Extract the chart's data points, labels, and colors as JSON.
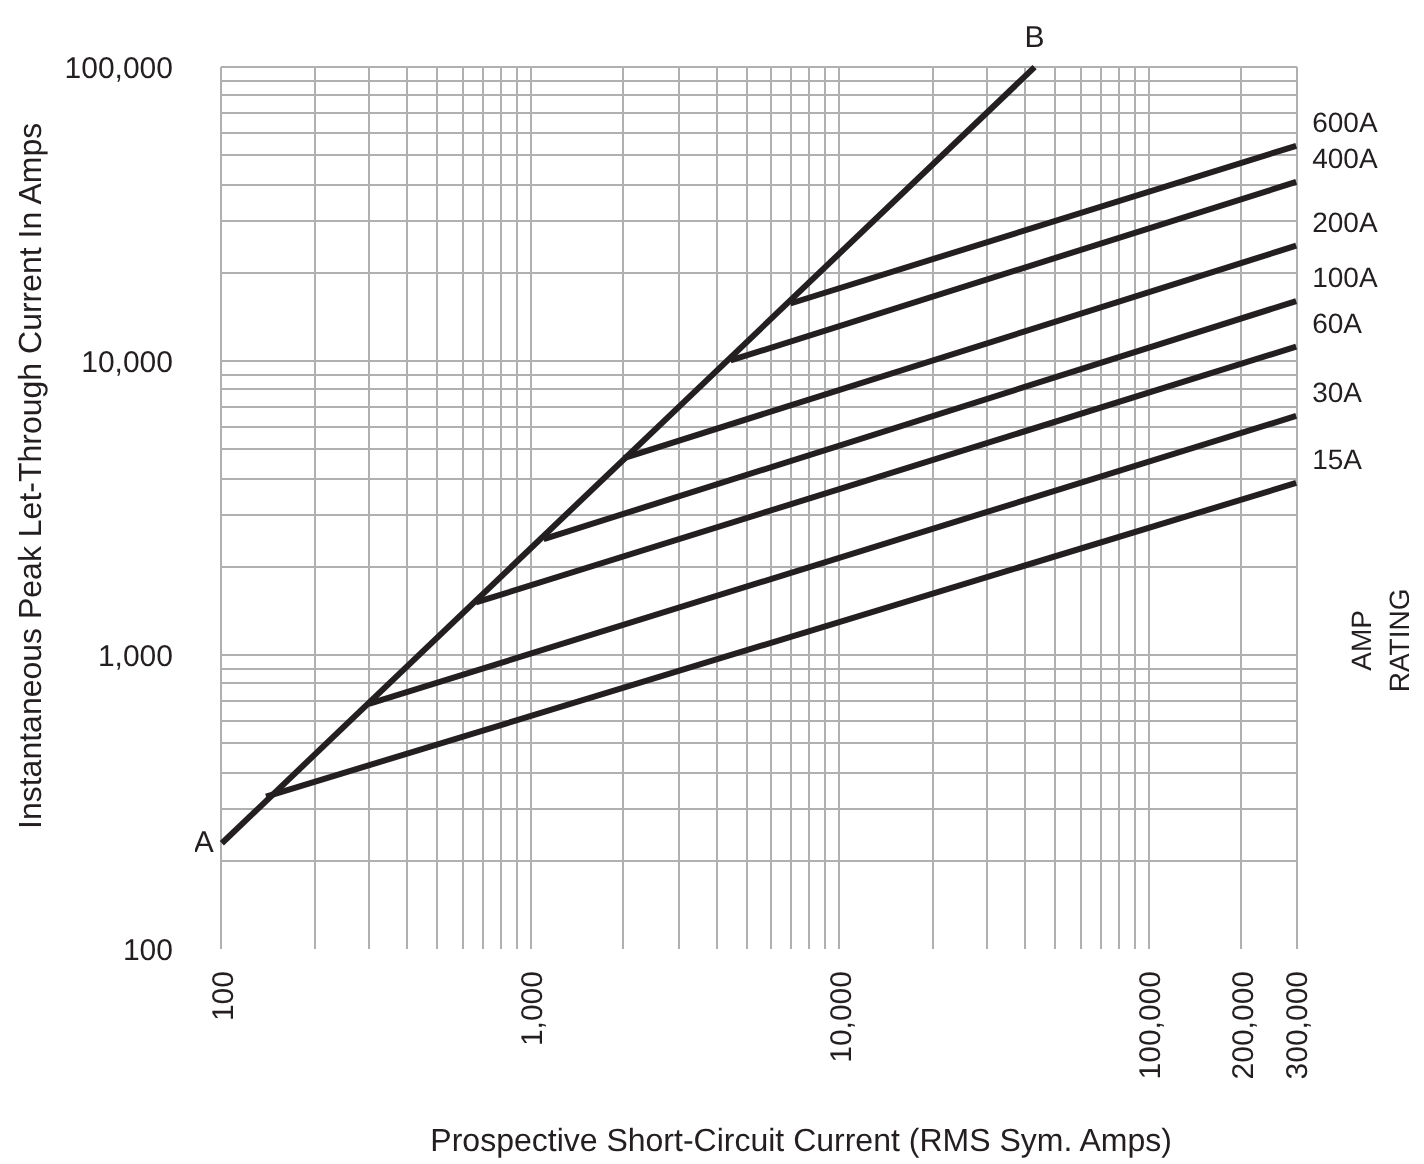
{
  "chart_data": {
    "type": "line",
    "xlabel": "Prospective Short-Circuit Current (RMS Sym. Amps)",
    "ylabel": "Instantaneous Peak Let-Through Current In Amps",
    "log": "xy",
    "grid": true,
    "marker": "none",
    "line_style": "solid",
    "xlim": [
      100,
      300000
    ],
    "ylim": [
      100,
      100000
    ],
    "xticks": [
      {
        "value": 100,
        "label": "100"
      },
      {
        "value": 1000,
        "label": "1,000"
      },
      {
        "value": 10000,
        "label": "10,000"
      },
      {
        "value": 100000,
        "label": "100,000"
      },
      {
        "value": 200000,
        "label": "200,000"
      },
      {
        "value": 300000,
        "label": "300,000"
      }
    ],
    "yticks": [
      {
        "value": 100,
        "label": "100"
      },
      {
        "value": 1000,
        "label": "1,000"
      },
      {
        "value": 10000,
        "label": "10,000"
      },
      {
        "value": 100000,
        "label": "100,000"
      }
    ],
    "series": [
      {
        "color": "#231f20",
        "x": [
          100,
          42700
        ],
        "values": [
          229,
          100000
        ]
      },
      {
        "name": "600A",
        "color": "#231f20",
        "x": [
          6920,
          300000
        ],
        "values": [
          15700,
          54000
        ]
      },
      {
        "name": "400A",
        "color": "#231f20",
        "x": [
          4430,
          300000
        ],
        "values": [
          10050,
          40700
        ]
      },
      {
        "name": "200A",
        "color": "#231f20",
        "x": [
          2000,
          300000
        ],
        "values": [
          4680,
          24700
        ]
      },
      {
        "name": "100A",
        "color": "#231f20",
        "x": [
          1100,
          300000
        ],
        "values": [
          2480,
          16000
        ]
      },
      {
        "name": "60A",
        "color": "#231f20",
        "x": [
          664,
          300000
        ],
        "values": [
          1510,
          11200
        ]
      },
      {
        "name": "30A",
        "color": "#231f20",
        "x": [
          299,
          300000
        ],
        "values": [
          682,
          6510
        ]
      },
      {
        "name": "15A",
        "color": "#231f20",
        "x": [
          139,
          300000
        ],
        "values": [
          330,
          3850
        ]
      }
    ],
    "annotations": [
      {
        "text": "A",
        "x": 100,
        "y": 229
      },
      {
        "text": "B",
        "x": 42700,
        "y": 100000
      },
      "AMP RATING"
    ]
  }
}
